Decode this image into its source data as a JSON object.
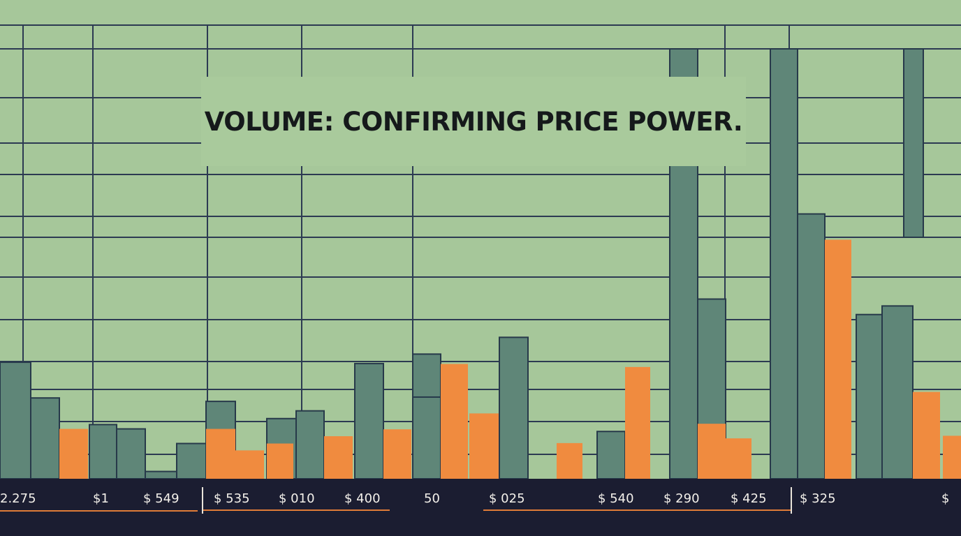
{
  "chart_data": {
    "type": "bar",
    "title": "VOLUME: CONFIRMING PRICE POWER.",
    "tick_labels": [
      "2.275",
      "$1",
      "$ 549",
      "$ 535",
      "$ 010",
      "$ 400",
      "50",
      "$ 025",
      "$ 540",
      "$ 290",
      "$ 425",
      "$ 325",
      "$"
    ],
    "series": [
      {
        "color": "#5f8678",
        "values": [
          271,
          188,
          126,
          116,
          17,
          82,
          180,
          140,
          158,
          268,
          290,
          190,
          329,
          110,
          1000,
          418,
          1000,
          616,
          382,
          402
        ]
      },
      {
        "color": "#f08b3f",
        "values": [
          116,
          116,
          66,
          82,
          99,
          115,
          267,
          152,
          83,
          260,
          128,
          94,
          556,
          202,
          100
        ]
      }
    ],
    "grid": true,
    "colors": {
      "background": "#a6c79a",
      "gridline": "#2c3a52",
      "axis_band": "#1b1d31",
      "accent_line": "#e07c38"
    }
  }
}
